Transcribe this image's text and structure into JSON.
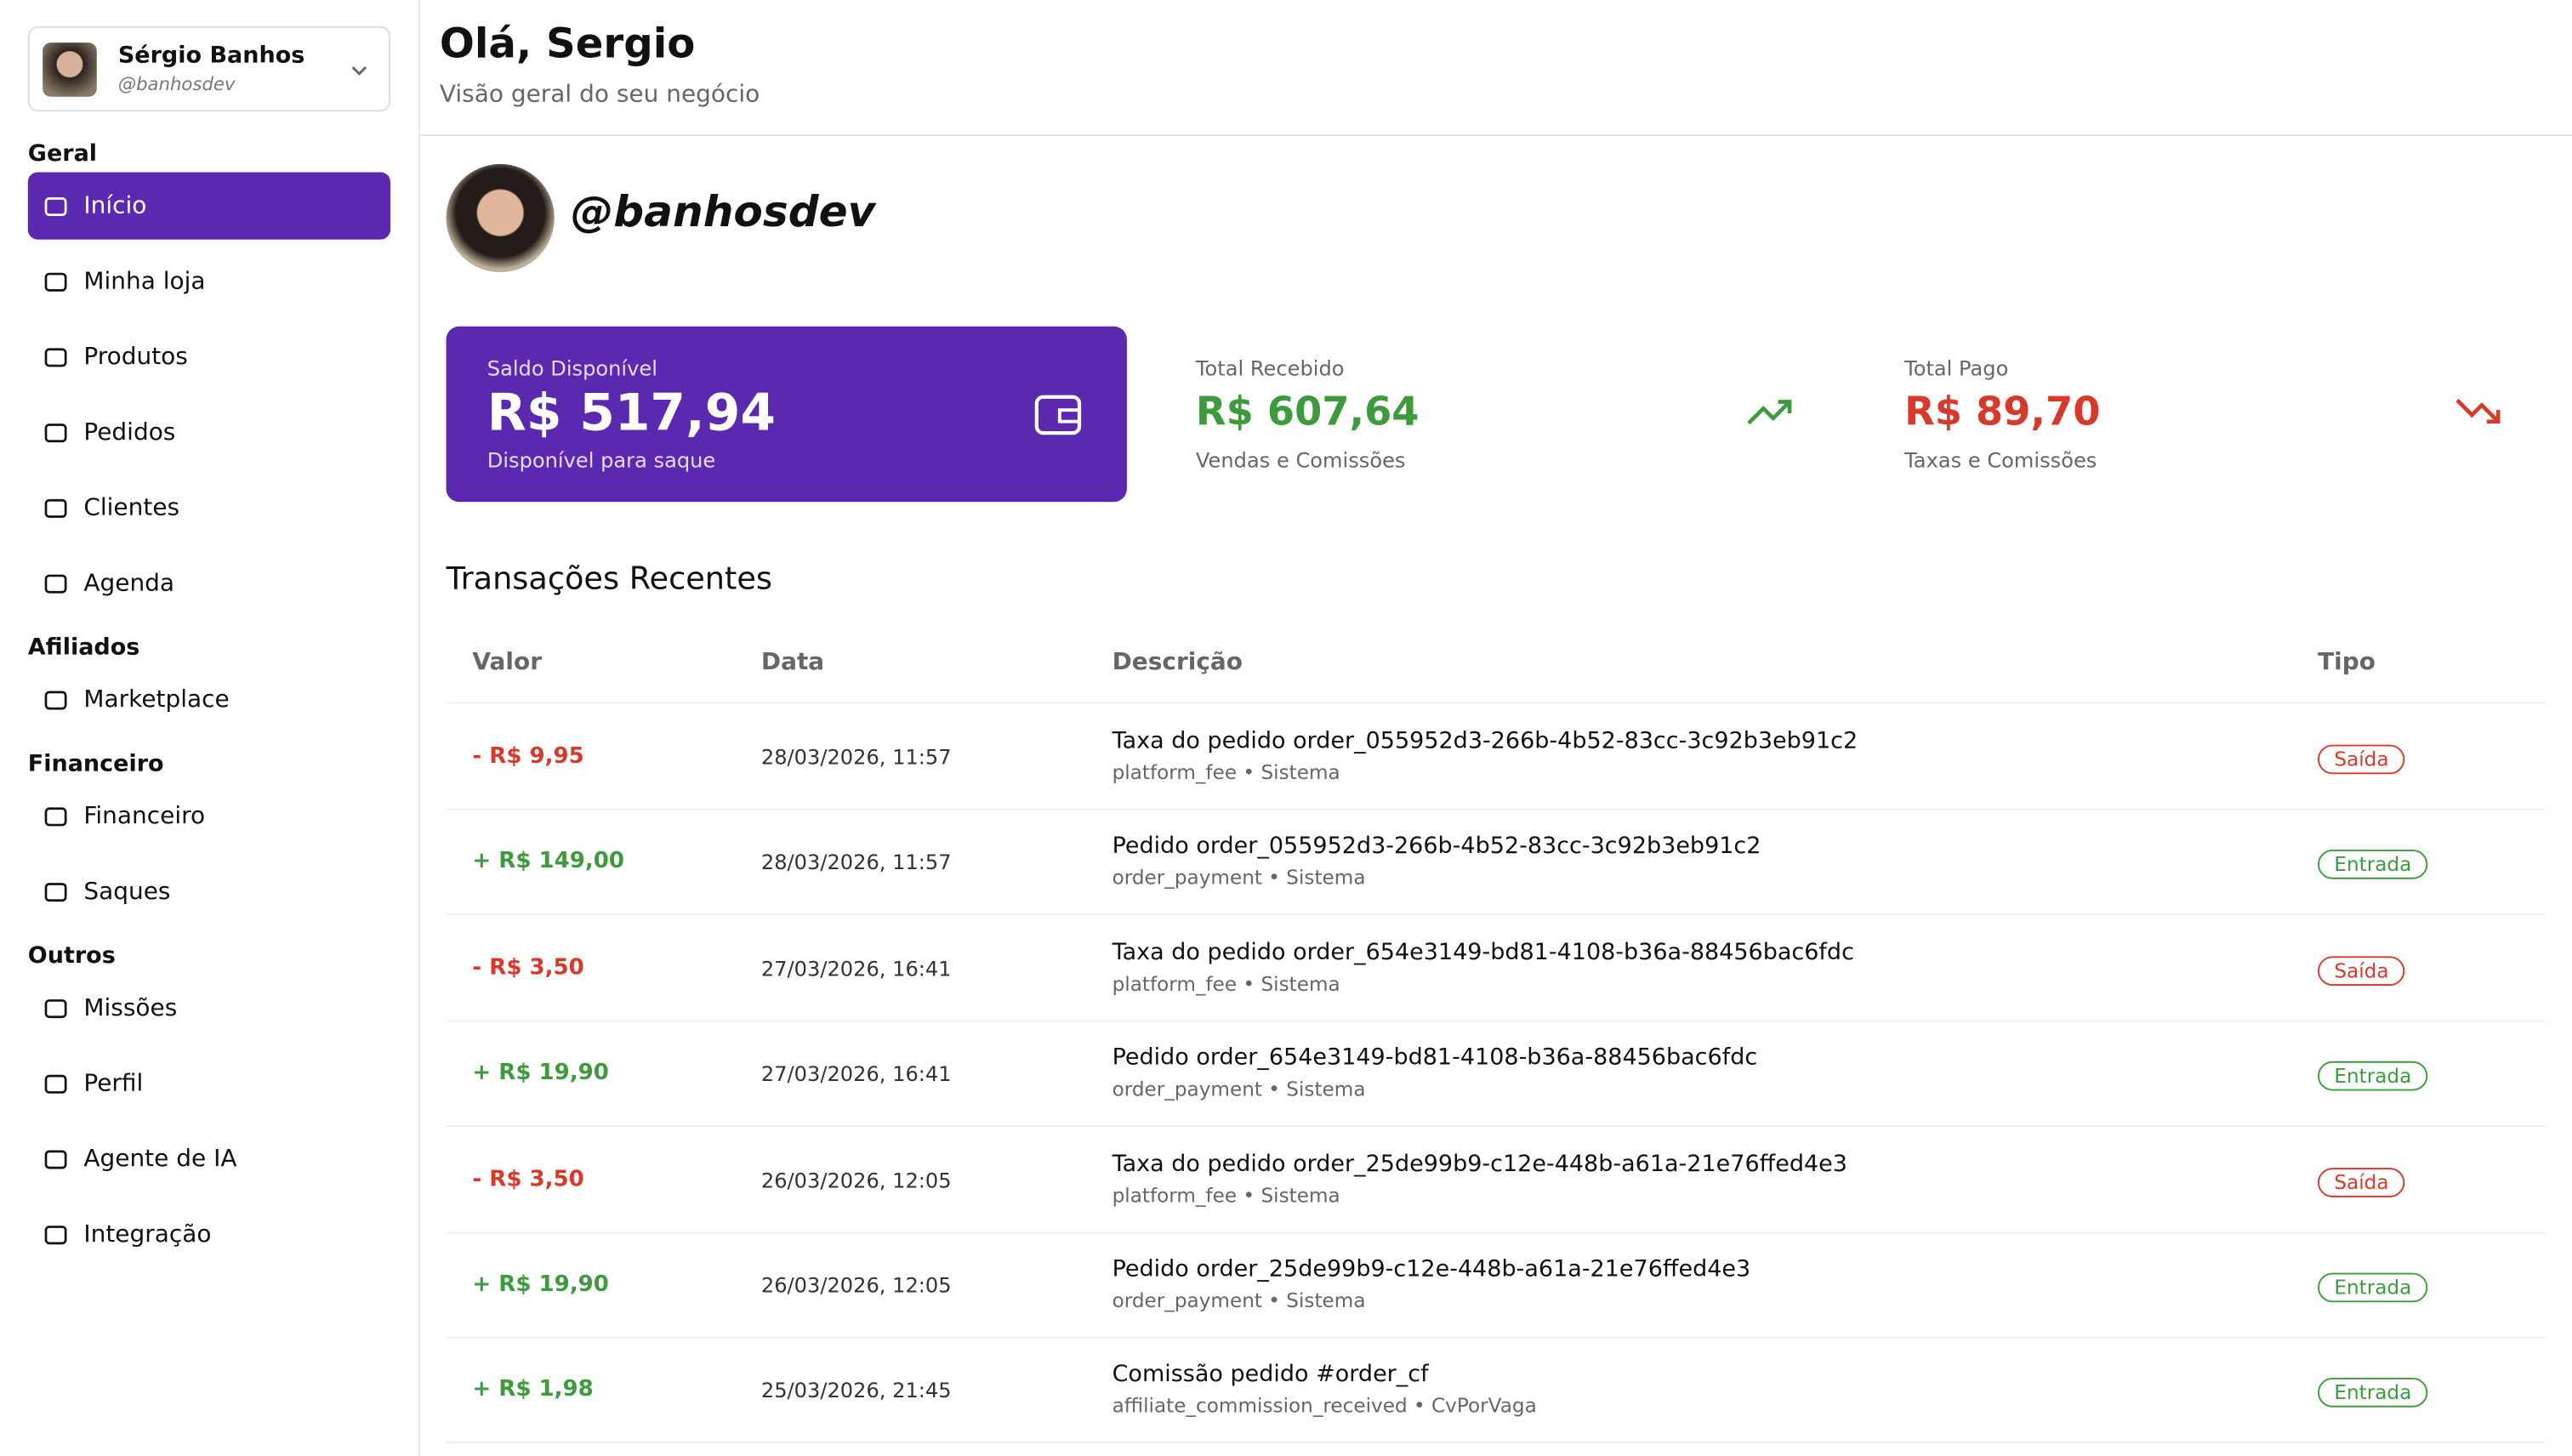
{
  "user": {
    "name": "Sérgio Banhos",
    "handle": "@banhosdev"
  },
  "nav": [
    {
      "title": "Geral",
      "items": [
        "Início",
        "Minha loja",
        "Produtos",
        "Pedidos",
        "Clientes",
        "Agenda"
      ]
    },
    {
      "title": "Afiliados",
      "items": [
        "Marketplace"
      ]
    },
    {
      "title": "Financeiro",
      "items": [
        "Financeiro",
        "Saques"
      ]
    },
    {
      "title": "Outros",
      "items": [
        "Missões",
        "Perfil",
        "Agente de IA",
        "Integração"
      ]
    }
  ],
  "header": {
    "title": "Olá, Sergio",
    "subtitle": "Visão geral do seu negócio"
  },
  "profile": {
    "handle": "@banhosdev"
  },
  "stats": [
    {
      "label": "Saldo Disponível",
      "value": "R$ 517,94",
      "note": "Disponível para saque",
      "color": "#ffffff"
    },
    {
      "label": "Total Recebido",
      "value": "R$ 607,64",
      "note": "Vendas e Comissões",
      "color": "#3d9a3d"
    },
    {
      "label": "Total Pago",
      "value": "R$ 89,70",
      "note": "Taxas e Comissões",
      "color": "#d63a2b"
    }
  ],
  "table": {
    "title": "Transações Recentes",
    "columns": [
      "Valor",
      "Data",
      "Descrição",
      "Tipo"
    ],
    "rows": [
      {
        "amount": "- R$ 9,95",
        "date": "28/03/2026, 11:57",
        "description": "Taxa do pedido order_055952d3-266b-4b52-83cc-3c92b3eb91c2",
        "source": "platform_fee • Sistema",
        "type": "Saída",
        "color": "#d63a2b"
      },
      {
        "amount": "+ R$ 149,00",
        "date": "28/03/2026, 11:57",
        "description": "Pedido order_055952d3-266b-4b52-83cc-3c92b3eb91c2",
        "source": "order_payment • Sistema",
        "type": "Entrada",
        "color": "#3d9a3d"
      },
      {
        "amount": "- R$ 3,50",
        "date": "27/03/2026, 16:41",
        "description": "Taxa do pedido order_654e3149-bd81-4108-b36a-88456bac6fdc",
        "source": "platform_fee • Sistema",
        "type": "Saída",
        "color": "#d63a2b"
      },
      {
        "amount": "+ R$ 19,90",
        "date": "27/03/2026, 16:41",
        "description": "Pedido order_654e3149-bd81-4108-b36a-88456bac6fdc",
        "source": "order_payment • Sistema",
        "type": "Entrada",
        "color": "#3d9a3d"
      },
      {
        "amount": "- R$ 3,50",
        "date": "26/03/2026, 12:05",
        "description": "Taxa do pedido order_25de99b9-c12e-448b-a61a-21e76ffed4e3",
        "source": "platform_fee • Sistema",
        "type": "Saída",
        "color": "#d63a2b"
      },
      {
        "amount": "+ R$ 19,90",
        "date": "26/03/2026, 12:05",
        "description": "Pedido order_25de99b9-c12e-448b-a61a-21e76ffed4e3",
        "source": "order_payment • Sistema",
        "type": "Entrada",
        "color": "#3d9a3d"
      },
      {
        "amount": "+ R$ 1,98",
        "date": "25/03/2026, 21:45",
        "description": "Comissão pedido #order_cf",
        "source": "affiliate_commission_received • CvPorVaga",
        "type": "Entrada",
        "color": "#3d9a3d"
      }
    ]
  }
}
